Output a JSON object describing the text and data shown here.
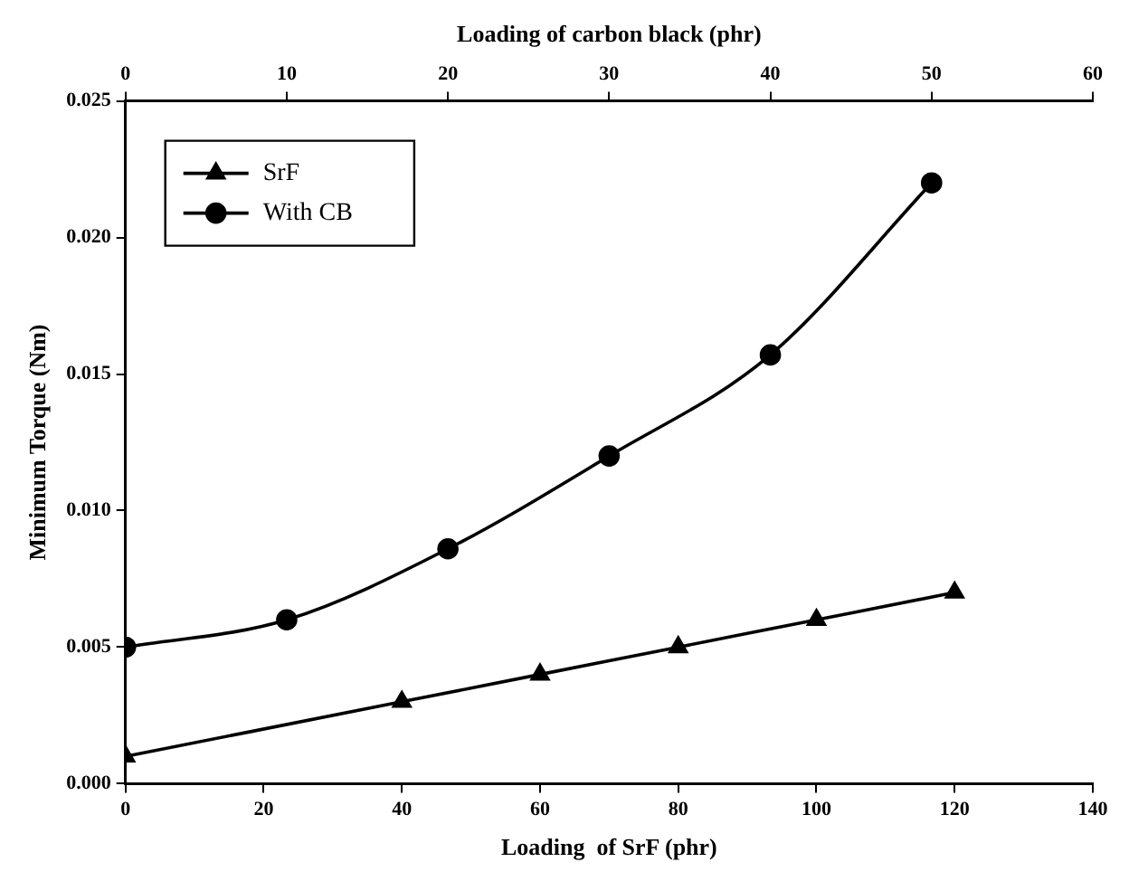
{
  "chart_data": {
    "type": "line",
    "xlabel": "Loading  of SrF (phr)",
    "x2label": "Loading of carbon black (phr)",
    "ylabel": "Minimum Torque (Nm)",
    "xlim": [
      0,
      140
    ],
    "xticks": [
      0,
      20,
      40,
      60,
      80,
      100,
      120,
      140
    ],
    "x2lim": [
      0,
      60
    ],
    "x2ticks": [
      0,
      10,
      20,
      30,
      40,
      50,
      60
    ],
    "ylim": [
      0,
      0.025
    ],
    "yticks": [
      {
        "value": 0,
        "label": "0.000"
      },
      0.005,
      {
        "value": 0.01,
        "label": "0.010"
      },
      0.015,
      {
        "value": 0.02,
        "label": "0.020"
      },
      0.025
    ],
    "series": [
      {
        "name": "SrF",
        "color": "#000000",
        "marker": "triangle",
        "x": [
          0,
          40,
          60,
          80,
          100,
          120
        ],
        "values": [
          0.001,
          0.003,
          0.004,
          0.005,
          0.006,
          0.007
        ]
      },
      {
        "name": "With CB",
        "color": "#000000",
        "marker": "circle",
        "axis": "x2",
        "x": [
          0,
          10,
          20,
          30,
          40,
          50
        ],
        "values": [
          0.005,
          0.006,
          0.0086,
          0.012,
          0.0157,
          0.022
        ]
      }
    ],
    "legend": "top left",
    "grid": false
  }
}
